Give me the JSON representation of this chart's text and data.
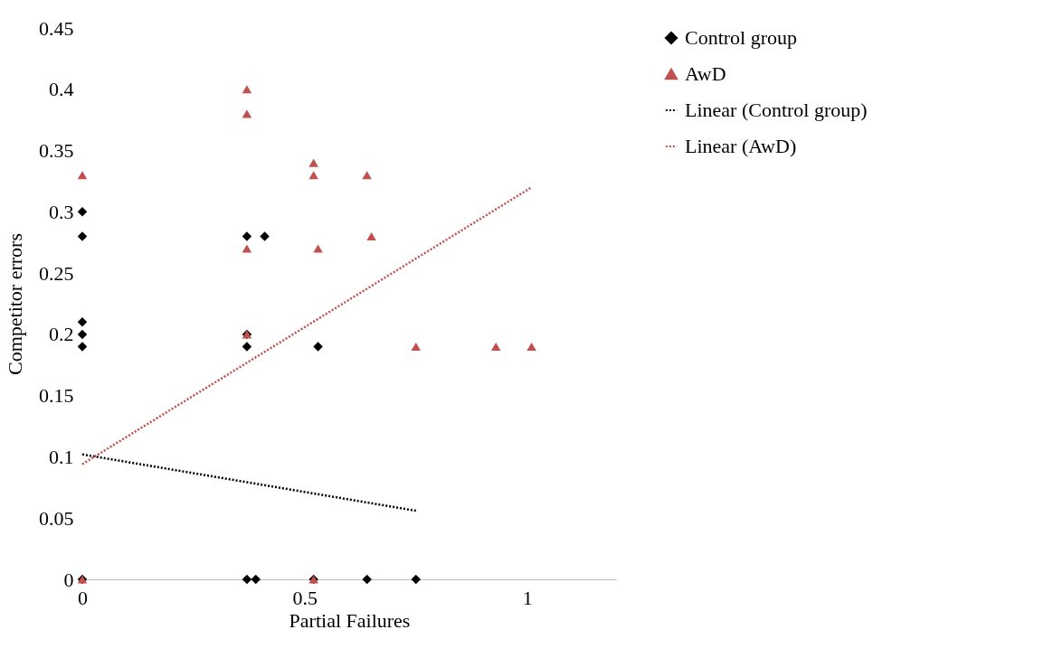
{
  "chart_data": {
    "type": "scatter",
    "xlabel": "Partial Failures",
    "ylabel": "Competitor errors",
    "xlim": [
      0,
      1.2
    ],
    "xticks": [
      0,
      0.5,
      1
    ],
    "ylim": [
      0,
      0.45
    ],
    "yticks": [
      0,
      0.05,
      0.1,
      0.15,
      0.2,
      0.25,
      0.3,
      0.35,
      0.4,
      0.45
    ],
    "grid": false,
    "legend": "right",
    "series": [
      {
        "name": "Control group",
        "type": "scatter",
        "marker": "diamond",
        "color": "#000000",
        "x": [
          0,
          0,
          0,
          0,
          0,
          0,
          0.37,
          0.41,
          0.37,
          0.37,
          0.53,
          0.37,
          0.39,
          0.52,
          0.64,
          0.75
        ],
        "values": [
          0.3,
          0.28,
          0.21,
          0.2,
          0.19,
          0,
          0.28,
          0.28,
          0.2,
          0.19,
          0.19,
          0,
          0,
          0,
          0,
          0
        ]
      },
      {
        "name": "AwD",
        "type": "scatter",
        "marker": "triangle",
        "color": "#c0504d",
        "x": [
          0,
          0,
          0.37,
          0.37,
          0.37,
          0.37,
          0.52,
          0.52,
          0.53,
          0.64,
          0.65,
          0.75,
          0.93,
          1.01,
          0.52
        ],
        "values": [
          0.33,
          0,
          0.4,
          0.38,
          0.27,
          0.2,
          0.34,
          0.33,
          0.27,
          0.33,
          0.28,
          0.19,
          0.19,
          0.19,
          0
        ]
      },
      {
        "name": "Linear (Control group)",
        "type": "line",
        "marker": "none",
        "line_style": "dotted",
        "color": "#000000",
        "x": [
          0,
          0.75
        ],
        "values": [
          0.102,
          0.056
        ]
      },
      {
        "name": "Linear (AwD)",
        "type": "line",
        "marker": "none",
        "line_style": "dotted",
        "color": "#c0504d",
        "x": [
          0,
          1.01
        ],
        "values": [
          0.094,
          0.32
        ]
      }
    ]
  }
}
